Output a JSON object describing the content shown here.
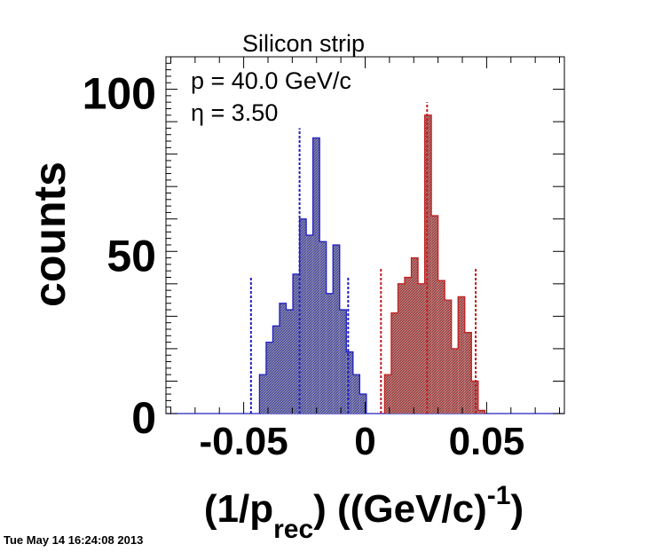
{
  "chart_data": {
    "type": "bar",
    "title": "Silicon strip",
    "annotations": [
      "p = 40.0 GeV/c",
      "η = 3.50"
    ],
    "xlabel": {
      "main": "(1/p",
      "sub": "rec",
      "mid": ") ((GeV/c)",
      "sup": "-1",
      "end": ")"
    },
    "ylabel": "counts",
    "xlim": [
      -0.082,
      0.082
    ],
    "ylim": [
      0,
      110
    ],
    "x_ticks": [
      {
        "value": -0.05,
        "label": "-0.05"
      },
      {
        "value": 0,
        "label": "0"
      },
      {
        "value": 0.05,
        "label": "0.05"
      }
    ],
    "y_ticks": [
      {
        "value": 0,
        "label": "0"
      },
      {
        "value": 50,
        "label": "50"
      },
      {
        "value": 100,
        "label": "100"
      }
    ],
    "bin_width": 0.00275,
    "series": [
      {
        "color": "#1f1fbf",
        "bin_start": -0.0435,
        "values": [
          12,
          22,
          27,
          34,
          32,
          43,
          60,
          55,
          85,
          53,
          37,
          52,
          32,
          19,
          12,
          6
        ],
        "mean": -0.027,
        "mean_height": 88,
        "bounds": [
          -0.047,
          -0.007
        ],
        "bound_height": 42
      },
      {
        "color": "#c02020",
        "bin_start": 0.008,
        "values": [
          12,
          31,
          40,
          42,
          48,
          40,
          92,
          61,
          41,
          35,
          20,
          36,
          25,
          10,
          1
        ],
        "mean": 0.0255,
        "mean_height": 96,
        "bounds": [
          0.0065,
          0.0455
        ],
        "bound_height": 45
      }
    ],
    "grid": false,
    "legend": "none"
  },
  "timestamp": "Tue May 14 16:24:08 2013"
}
